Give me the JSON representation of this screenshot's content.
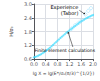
{
  "chart_data": {
    "type": "scatter",
    "xlabel": "lg X = lg(E*/σ₀(π/3)^{1/2})",
    "ylabel": "H/σ₀",
    "xlim": [
      0,
      2.0
    ],
    "ylim": [
      0.6,
      3.0
    ],
    "xticks": [
      {
        "value": 0,
        "label": "0.0"
      },
      0.4,
      0.8,
      1.2,
      1.6,
      {
        "value": 2.0,
        "label": "2.0"
      }
    ],
    "yticks": [
      0.6,
      1.2,
      1.8,
      2.4,
      {
        "value": 3.0,
        "label": "3.0"
      }
    ],
    "grid": true,
    "series": [
      {
        "color": "#44ddff",
        "marker": "circle",
        "x": [
          0.0,
          0.05,
          0.1,
          0.15,
          0.2,
          0.25,
          0.3,
          0.35,
          0.4,
          0.45,
          0.5,
          0.55,
          0.6,
          0.65,
          0.7,
          0.75,
          0.8,
          0.85,
          0.9,
          0.95,
          1.0,
          1.05,
          1.1,
          1.15,
          1.2,
          1.25,
          1.3,
          1.35,
          1.4,
          1.45,
          1.5,
          1.55,
          1.6,
          1.65,
          1.7,
          1.75,
          1.8,
          1.85,
          1.9,
          1.95,
          2.0
        ],
        "values": [
          0.68,
          0.7,
          0.72,
          0.75,
          0.78,
          0.82,
          0.86,
          0.9,
          0.95,
          1.0,
          1.05,
          1.1,
          1.16,
          1.22,
          1.28,
          1.34,
          1.4,
          1.46,
          1.52,
          1.58,
          1.63,
          1.69,
          1.75,
          1.8,
          1.85,
          1.9,
          1.95,
          2.0,
          2.05,
          2.1,
          2.15,
          2.2,
          2.24,
          2.28,
          2.32,
          2.36,
          2.4,
          2.43,
          2.46,
          2.49,
          2.52
        ]
      },
      {
        "color": "#88ddff",
        "marker": "open_diamond",
        "x": [
          1.28,
          1.4,
          1.52,
          1.62,
          1.74,
          1.84,
          1.93
        ],
        "values": [
          1.93,
          2.08,
          2.18,
          2.3,
          2.55,
          2.7,
          2.82
        ]
      }
    ],
    "annotations": [
      {
        "text": "Experience\n(Tabor)",
        "x": 1.74,
        "y": 2.55
      },
      {
        "text": "Finite element calculations",
        "x": 1.15,
        "y": 1.8
      }
    ]
  }
}
